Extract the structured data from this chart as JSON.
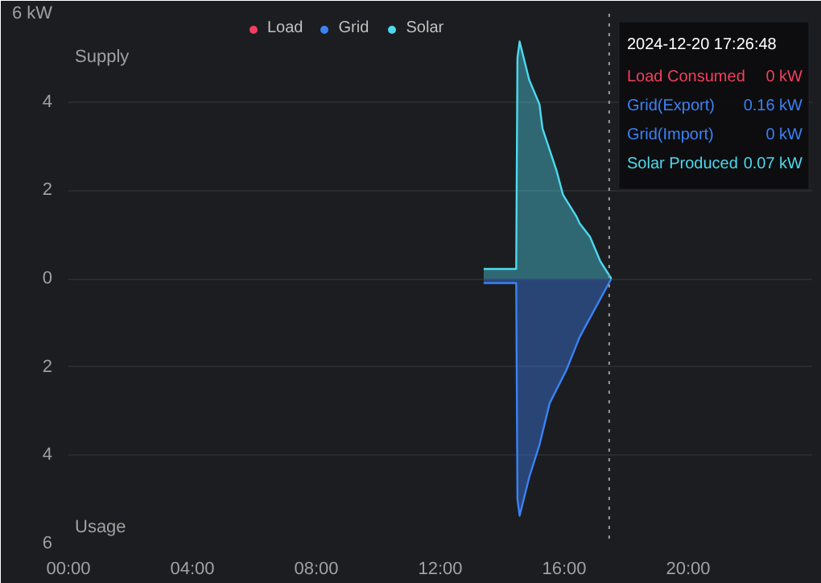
{
  "chart_data": {
    "type": "area",
    "series": [
      {
        "name": "Load",
        "color": "#f43f5e"
      },
      {
        "name": "Grid",
        "color": "#3b82f6",
        "x": [
          13.4,
          14.45,
          14.49,
          14.56,
          14.87,
          15.2,
          15.53,
          16.07,
          16.5,
          16.94,
          17.52
        ],
        "values": [
          -0.1,
          -0.1,
          -5.0,
          -5.37,
          -4.5,
          -3.77,
          -2.82,
          -2.07,
          -1.32,
          -0.75,
          0
        ]
      },
      {
        "name": "Solar",
        "color": "#4dd9f0",
        "x": [
          13.4,
          14.45,
          14.49,
          14.56,
          14.87,
          15.2,
          15.3,
          15.75,
          15.96,
          16.4,
          16.5,
          16.83,
          17.16,
          17.52
        ],
        "values": [
          0.22,
          0.22,
          5.0,
          5.37,
          4.5,
          3.95,
          3.4,
          2.45,
          1.9,
          1.4,
          1.25,
          0.95,
          0.4,
          0
        ]
      }
    ],
    "xlim": [
      0,
      24
    ],
    "xticks": [
      {
        "value": 0,
        "label": "00:00"
      },
      {
        "value": 4,
        "label": "04:00"
      },
      {
        "value": 8,
        "label": "08:00"
      },
      {
        "value": 12,
        "label": "12:00"
      },
      {
        "value": 16,
        "label": "16:00"
      },
      {
        "value": 20,
        "label": "20:00"
      }
    ],
    "ylim": [
      -6,
      6
    ],
    "yticks": [
      {
        "value": 6,
        "label": "6 kW"
      },
      4,
      2,
      0,
      {
        "value": -2,
        "label": "2"
      },
      {
        "value": -4,
        "label": "4"
      },
      {
        "value": -6,
        "label": "6"
      }
    ],
    "grid": "y",
    "legend": "top",
    "ref_lines": [
      {
        "axis": "x",
        "value": 17.45,
        "color": "#9a9a9a",
        "line_style": "dotted"
      }
    ],
    "annotations": [
      "Supply",
      "Usage",
      "2024-12-20 17:26:48",
      "Load Consumed",
      "0 kW",
      "Grid(Export)",
      "0.16 kW",
      "Grid(Import)",
      "0 kW",
      "Solar Produced",
      "0.07 kW"
    ]
  }
}
